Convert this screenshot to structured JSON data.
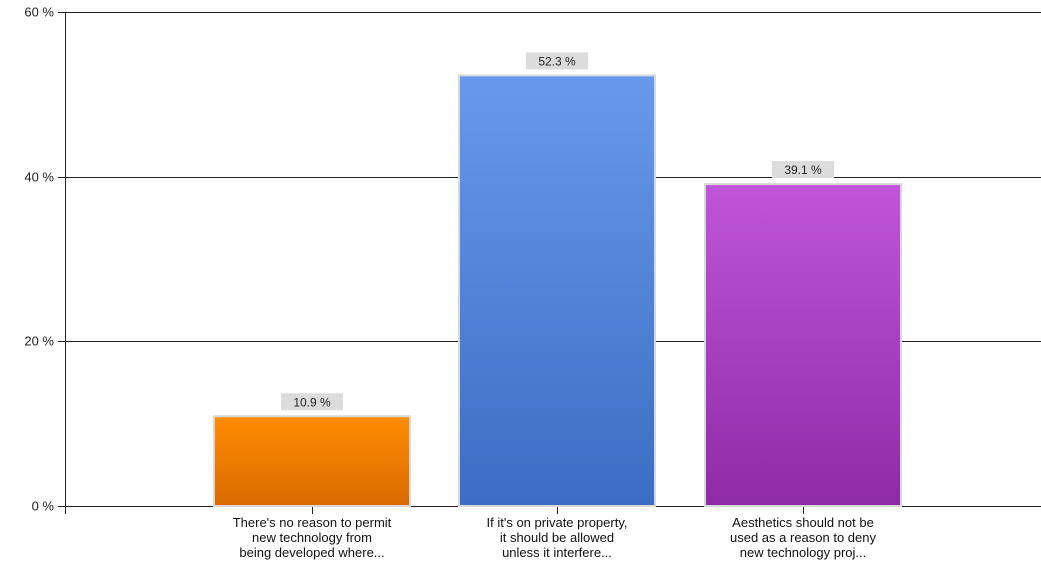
{
  "chart_data": {
    "type": "bar",
    "categories": [
      [
        "There's no reason to permit",
        "new technology from",
        "being developed where..."
      ],
      [
        "If it's on private property,",
        "it should be allowed",
        "unless it interfere..."
      ],
      [
        "Aesthetics should not be",
        "used as a reason to deny",
        "new technology proj..."
      ]
    ],
    "values": [
      10.9,
      52.3,
      39.1
    ],
    "data_labels": [
      "10.9 %",
      "52.3 %",
      "39.1 %"
    ],
    "colors": [
      {
        "top": "#ff8c00",
        "bottom": "#d96a00"
      },
      {
        "top": "#6699ee",
        "bottom": "#3a6ec4"
      },
      {
        "top": "#bf55d9",
        "bottom": "#8e2ba6"
      }
    ],
    "ylim": [
      0,
      60
    ],
    "y_ticks": [
      0,
      20,
      40,
      60
    ],
    "y_tick_labels": [
      "0 %",
      "20 %",
      "40 %",
      "60 %"
    ],
    "grid": true,
    "title": "",
    "xlabel": "",
    "ylabel": ""
  }
}
